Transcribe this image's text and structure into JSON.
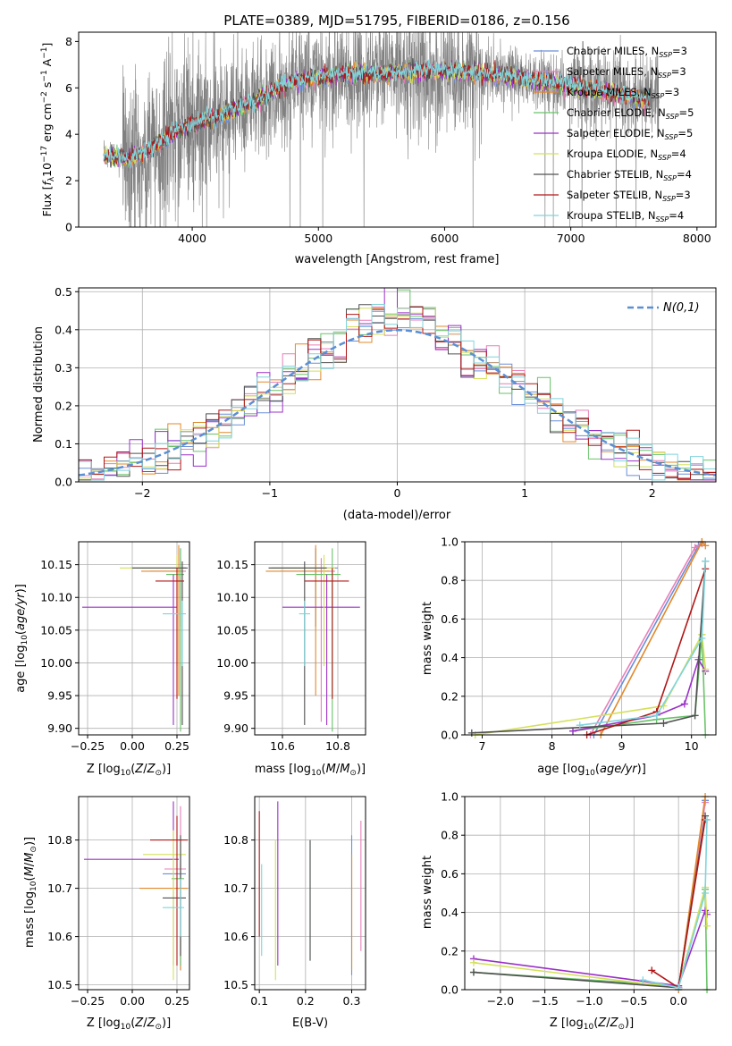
{
  "figure_title": "PLATE=0389, MJD=51795, FIBERID=0186, z=0.156",
  "colors": {
    "data_spectrum": "#808080",
    "normal_curve": "#5b8fd4",
    "models": [
      "#6a8fd8",
      "#e87fb8",
      "#e2892b",
      "#6ac26a",
      "#9b30c8",
      "#d4e05a",
      "#505050",
      "#b01818",
      "#7fd4dc"
    ]
  },
  "model_labels": [
    "Chabrier MILES, N_SSP=3",
    "Salpeter MILES, N_SSP=3",
    "Kroupa MILES, N_SSP=3",
    "Chabrier ELODIE, N_SSP=5",
    "Salpeter ELODIE, N_SSP=5",
    "Kroupa ELODIE, N_SSP=4",
    "Chabrier STELIB, N_SSP=4",
    "Salpeter STELIB, N_SSP=3",
    "Kroupa STELIB, N_SSP=4"
  ],
  "legend_rows": [
    {
      "pre": "Chabrier MILES, N",
      "sub": "SSP",
      "post": "=3"
    },
    {
      "pre": "Salpeter MILES, N",
      "sub": "SSP",
      "post": "=3"
    },
    {
      "pre": "Kroupa MILES, N",
      "sub": "SSP",
      "post": "=3"
    },
    {
      "pre": "Chabrier ELODIE, N",
      "sub": "SSP",
      "post": "=5"
    },
    {
      "pre": "Salpeter ELODIE, N",
      "sub": "SSP",
      "post": "=5"
    },
    {
      "pre": "Kroupa ELODIE, N",
      "sub": "SSP",
      "post": "=4"
    },
    {
      "pre": "Chabrier STELIB, N",
      "sub": "SSP",
      "post": "=4"
    },
    {
      "pre": "Salpeter STELIB, N",
      "sub": "SSP",
      "post": "=3"
    },
    {
      "pre": "Kroupa STELIB, N",
      "sub": "SSP",
      "post": "=4"
    }
  ],
  "chart_data": [
    {
      "id": "spectrum",
      "type": "line",
      "xlabel": "wavelength [Angstrom, rest frame]",
      "ylabel_parts": {
        "a": "Flux [",
        "b": "f",
        "c": "λ",
        "d": "10",
        "e": "−17",
        "f": " erg cm",
        "g": "−2",
        "h": " s",
        "i": "−1",
        "j": " A",
        "k": "−1",
        "l": "]"
      },
      "xlim": [
        3100,
        8150
      ],
      "ylim": [
        0,
        8.4
      ],
      "xticks": [
        4000,
        5000,
        6000,
        7000,
        8000
      ],
      "yticks": [
        0,
        2,
        4,
        6,
        8
      ],
      "data_range": [
        3300,
        7700
      ],
      "model_range": [
        3300,
        7620
      ],
      "envelope": {
        "x": [
          3300,
          3500,
          3700,
          3900,
          4100,
          4300,
          4500,
          4700,
          4900,
          5100,
          5300,
          5500,
          5700,
          5900,
          6100,
          6300,
          6500,
          6700,
          6900,
          7100,
          7300,
          7500,
          7620
        ],
        "y": [
          3.1,
          2.9,
          3.5,
          4.2,
          4.6,
          5.0,
          5.4,
          6.1,
          6.4,
          6.5,
          6.6,
          6.6,
          6.7,
          6.7,
          6.7,
          6.6,
          6.5,
          6.3,
          6.2,
          6.0,
          5.8,
          5.6,
          5.5
        ]
      }
    },
    {
      "id": "residuals",
      "type": "bar",
      "xlabel": "(data-model)/error",
      "ylabel": "Normed distribution",
      "xlim": [
        -2.5,
        2.5
      ],
      "ylim": [
        0,
        0.51
      ],
      "xticks": [
        -2,
        -1,
        0,
        1,
        2
      ],
      "yticks": [
        0.0,
        0.1,
        0.2,
        0.3,
        0.4,
        0.5
      ],
      "legend_label": "N(0,1)",
      "bin_width": 0.1
    },
    {
      "id": "age_vs_Z",
      "type": "scatter",
      "xlabel": "Z [log10(Z/Z⊙)]",
      "ylabel": "age [log10(age/yr)]",
      "xlim": [
        -0.3,
        0.32
      ],
      "ylim": [
        9.89,
        10.185
      ],
      "xticks": [
        -0.25,
        0.0,
        0.25
      ],
      "yticks": [
        9.9,
        9.95,
        10.0,
        10.05,
        10.1,
        10.15
      ],
      "points": [
        {
          "x": 0.27,
          "y": 10.145,
          "xerr": [
            0.28,
            0.03
          ],
          "yerr": [
            0.09,
            0.03
          ]
        },
        {
          "x": 0.27,
          "y": 10.14,
          "xerr": [
            0.17,
            0.03
          ],
          "yerr": [
            0.23,
            0.02
          ]
        },
        {
          "x": 0.26,
          "y": 10.14,
          "xerr": [
            0.21,
            0.02
          ],
          "yerr": [
            0.19,
            0.04
          ]
        },
        {
          "x": 0.27,
          "y": 10.135,
          "xerr": [
            0.08,
            0.02
          ],
          "yerr": [
            0.24,
            0.04
          ]
        },
        {
          "x": 0.23,
          "y": 10.085,
          "xerr": [
            0.51,
            0.02
          ],
          "yerr": [
            0.18,
            0.05
          ]
        },
        {
          "x": 0.25,
          "y": 10.145,
          "xerr": [
            0.32,
            0.04
          ],
          "yerr": [
            0.15,
            0.02
          ]
        },
        {
          "x": 0.28,
          "y": 10.145,
          "xerr": [
            0.28,
            0.03
          ],
          "yerr": [
            0.24,
            0.01
          ]
        },
        {
          "x": 0.25,
          "y": 10.125,
          "xerr": [
            0.12,
            0.04
          ],
          "yerr": [
            0.18,
            0.02
          ]
        },
        {
          "x": 0.28,
          "y": 10.075,
          "xerr": [
            0.11,
            0.02
          ],
          "yerr": [
            0.08,
            0.02
          ]
        }
      ]
    },
    {
      "id": "age_vs_mass",
      "type": "scatter",
      "xlabel": "mass [log10(M/M⊙)]",
      "ylabel": "",
      "xlim": [
        10.5,
        10.9
      ],
      "ylim": [
        9.89,
        10.185
      ],
      "xticks": [
        10.6,
        10.8
      ],
      "yticks": [
        9.9,
        9.95,
        10.0,
        10.05,
        10.1,
        10.15
      ],
      "points": [
        {
          "x": 10.72,
          "y": 10.145,
          "xerr": [
            0.16,
            0.08
          ],
          "yerr": [
            0.09,
            0.03
          ]
        },
        {
          "x": 10.74,
          "y": 10.14,
          "xerr": [
            0.15,
            0.05
          ],
          "yerr": [
            0.23,
            0.02
          ]
        },
        {
          "x": 10.72,
          "y": 10.14,
          "xerr": [
            0.18,
            0.05
          ],
          "yerr": [
            0.19,
            0.04
          ]
        },
        {
          "x": 10.78,
          "y": 10.135,
          "xerr": [
            0.13,
            0.03
          ],
          "yerr": [
            0.24,
            0.04
          ]
        },
        {
          "x": 10.76,
          "y": 10.085,
          "xerr": [
            0.16,
            0.12
          ],
          "yerr": [
            0.18,
            0.05
          ]
        },
        {
          "x": 10.75,
          "y": 10.145,
          "xerr": [
            0.2,
            0.04
          ],
          "yerr": [
            0.15,
            0.02
          ]
        },
        {
          "x": 10.68,
          "y": 10.145,
          "xerr": [
            0.13,
            0.08
          ],
          "yerr": [
            0.24,
            0.01
          ]
        },
        {
          "x": 10.78,
          "y": 10.125,
          "xerr": [
            0.1,
            0.06
          ],
          "yerr": [
            0.18,
            0.02
          ]
        },
        {
          "x": 10.68,
          "y": 10.075,
          "xerr": [
            0.02,
            0.02
          ],
          "yerr": [
            0.08,
            0.02
          ]
        }
      ]
    },
    {
      "id": "weight_vs_age",
      "type": "line",
      "xlabel": "age [log10(age/yr)]",
      "ylabel": "mass weight",
      "xlim": [
        6.75,
        10.35
      ],
      "ylim": [
        0,
        1.0
      ],
      "xticks": [
        7,
        8,
        9,
        10
      ],
      "yticks": [
        0.0,
        0.2,
        0.4,
        0.6,
        0.8,
        1.0
      ],
      "series": [
        {
          "x": [
            8.6,
            10.1,
            10.15
          ],
          "y": [
            0.0,
            0.98,
            1.0
          ]
        },
        {
          "x": [
            8.55,
            10.05,
            10.15
          ],
          "y": [
            0.0,
            0.97,
            0.99
          ]
        },
        {
          "x": [
            8.7,
            10.15,
            10.2
          ],
          "y": [
            0.0,
            1.0,
            0.98
          ]
        },
        {
          "x": [
            8.3,
            9.5,
            10.05,
            10.15,
            10.2
          ],
          "y": [
            0.02,
            0.08,
            0.1,
            0.52,
            0.0
          ]
        },
        {
          "x": [
            8.3,
            9.5,
            9.9,
            10.1,
            10.2
          ],
          "y": [
            0.02,
            0.1,
            0.16,
            0.39,
            0.33
          ]
        },
        {
          "x": [
            6.9,
            9.6,
            10.15,
            10.2
          ],
          "y": [
            0.0,
            0.15,
            0.52,
            0.34
          ]
        },
        {
          "x": [
            6.85,
            9.6,
            10.05,
            10.2
          ],
          "y": [
            0.01,
            0.06,
            0.1,
            0.9
          ]
        },
        {
          "x": [
            8.5,
            9.5,
            10.2
          ],
          "y": [
            0.0,
            0.12,
            0.86
          ]
        },
        {
          "x": [
            8.4,
            9.5,
            10.15,
            10.2
          ],
          "y": [
            0.05,
            0.1,
            0.5,
            0.9
          ]
        }
      ]
    },
    {
      "id": "mass_vs_Z",
      "type": "scatter",
      "xlabel": "Z [log10(Z/Z⊙)]",
      "ylabel": "mass [log10(M/M⊙)]",
      "xlim": [
        -0.3,
        0.32
      ],
      "ylim": [
        10.49,
        10.89
      ],
      "xticks": [
        -0.25,
        0.0,
        0.25
      ],
      "yticks": [
        10.5,
        10.6,
        10.7,
        10.8
      ],
      "points": [
        {
          "x": 0.27,
          "y": 10.73,
          "xerr": [
            0.1,
            0.03
          ],
          "yerr": [
            0.2,
            0.04
          ]
        },
        {
          "x": 0.27,
          "y": 10.74,
          "xerr": [
            0.09,
            0.03
          ],
          "yerr": [
            0.2,
            0.13
          ]
        },
        {
          "x": 0.27,
          "y": 10.7,
          "xerr": [
            0.23,
            0.04
          ],
          "yerr": [
            0.17,
            0.05
          ]
        },
        {
          "x": 0.27,
          "y": 10.72,
          "xerr": [
            0.05,
            0.02
          ],
          "yerr": [
            0.18,
            0.08
          ]
        },
        {
          "x": 0.23,
          "y": 10.76,
          "xerr": [
            0.5,
            0.03
          ],
          "yerr": [
            0.22,
            0.12
          ]
        },
        {
          "x": 0.23,
          "y": 10.77,
          "xerr": [
            0.17,
            0.07
          ],
          "yerr": [
            0.26,
            0.05
          ]
        },
        {
          "x": 0.27,
          "y": 10.68,
          "xerr": [
            0.1,
            0.03
          ],
          "yerr": [
            0.12,
            0.13
          ]
        },
        {
          "x": 0.25,
          "y": 10.8,
          "xerr": [
            0.15,
            0.06
          ],
          "yerr": [
            0.26,
            0.05
          ]
        },
        {
          "x": 0.27,
          "y": 10.66,
          "xerr": [
            0.1,
            0.02
          ],
          "yerr": [
            0.06,
            0.06
          ]
        }
      ]
    },
    {
      "id": "mass_vs_ebv",
      "type": "scatter",
      "xlabel": "E(B-V)",
      "ylabel": "",
      "xlim": [
        0.09,
        0.33
      ],
      "ylim": [
        10.49,
        10.89
      ],
      "xticks": [
        0.1,
        0.2,
        0.3
      ],
      "yticks": [
        10.5,
        10.6,
        10.7,
        10.8
      ],
      "points": [
        {
          "x": 0.3,
          "y": 10.68,
          "yerr": [
            0.16,
            0.13
          ]
        },
        {
          "x": 0.32,
          "y": 10.7,
          "yerr": [
            0.13,
            0.14
          ]
        },
        {
          "x": 0.3,
          "y": 10.66,
          "yerr": [
            0.13,
            0.11
          ]
        },
        {
          "x": 0.21,
          "y": 10.7,
          "yerr": [
            0.15,
            0.1
          ]
        },
        {
          "x": 0.14,
          "y": 10.7,
          "yerr": [
            0.16,
            0.18
          ]
        },
        {
          "x": 0.135,
          "y": 10.67,
          "yerr": [
            0.16,
            0.13
          ]
        },
        {
          "x": 0.21,
          "y": 10.69,
          "yerr": [
            0.14,
            0.11
          ]
        },
        {
          "x": 0.1,
          "y": 10.72,
          "yerr": [
            0.12,
            0.14
          ]
        },
        {
          "x": 0.105,
          "y": 10.66,
          "yerr": [
            0.1,
            0.09
          ]
        }
      ]
    },
    {
      "id": "weight_vs_Z",
      "type": "line",
      "xlabel": "Z [log10(Z/Z⊙)]",
      "ylabel": "mass weight",
      "xlim": [
        -2.4,
        0.42
      ],
      "ylim": [
        0,
        1.0
      ],
      "xticks": [
        -2.0,
        -1.5,
        -1.0,
        -0.5,
        0.0
      ],
      "yticks": [
        0.0,
        0.2,
        0.4,
        0.6,
        0.8,
        1.0
      ],
      "series": [
        {
          "x": [
            0.0,
            0.3
          ],
          "y": [
            0.0,
            0.98
          ]
        },
        {
          "x": [
            0.0,
            0.3
          ],
          "y": [
            0.0,
            0.97
          ]
        },
        {
          "x": [
            0.0,
            0.3
          ],
          "y": [
            0.0,
            1.0
          ]
        },
        {
          "x": [
            -2.3,
            0.0,
            0.3,
            0.32
          ],
          "y": [
            0.09,
            0.02,
            0.52,
            0.0
          ]
        },
        {
          "x": [
            -2.3,
            0.0,
            0.3,
            0.32
          ],
          "y": [
            0.16,
            0.02,
            0.41,
            0.39
          ]
        },
        {
          "x": [
            -2.3,
            0.0,
            0.3,
            0.32
          ],
          "y": [
            0.14,
            0.01,
            0.53,
            0.33
          ]
        },
        {
          "x": [
            -2.3,
            0.0,
            0.3
          ],
          "y": [
            0.09,
            0.01,
            0.9
          ]
        },
        {
          "x": [
            -0.3,
            0.0,
            0.3
          ],
          "y": [
            0.1,
            0.01,
            0.88
          ]
        },
        {
          "x": [
            -0.4,
            0.0,
            0.3,
            0.32
          ],
          "y": [
            0.05,
            0.01,
            0.5,
            0.88
          ]
        }
      ]
    }
  ]
}
